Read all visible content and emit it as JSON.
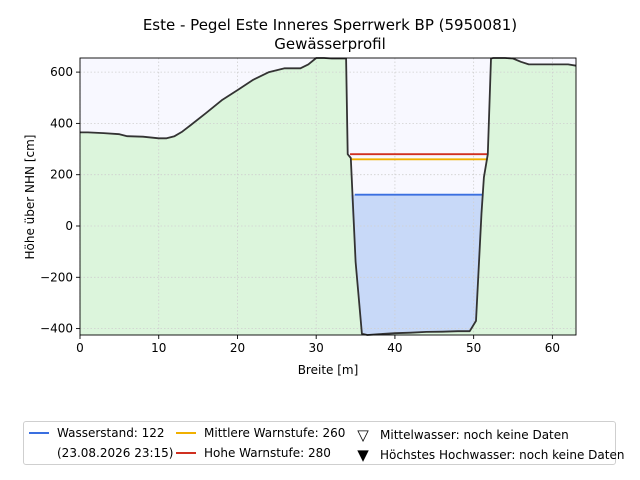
{
  "chart_data": {
    "type": "area",
    "title": "Este - Pegel Este Inneres Sperrwerk BP (5950081)",
    "subtitle": "Gewässerprofil",
    "xlabel": "Breite [m]",
    "ylabel": "Höhe über NHN [cm]",
    "xlim": [
      0,
      63
    ],
    "ylim": [
      -425,
      655
    ],
    "x_ticks": [
      0,
      10,
      20,
      30,
      40,
      50,
      60
    ],
    "y_ticks": [
      -400,
      -200,
      0,
      200,
      400,
      600
    ],
    "grid": true,
    "profile": {
      "x": [
        0,
        1,
        3,
        5,
        6,
        8,
        10,
        11,
        12,
        13,
        14,
        16,
        18,
        20,
        22,
        24,
        26,
        27,
        28,
        29,
        30,
        31,
        32,
        33,
        33.8,
        34.0,
        34.4,
        35.0,
        35.8,
        36.5,
        38,
        40,
        42,
        44,
        46,
        48,
        49.5,
        50.3,
        51.0,
        51.3,
        51.8,
        52.2,
        52.5,
        54,
        55,
        56,
        57,
        58,
        60,
        62,
        63
      ],
      "y": [
        365,
        365,
        362,
        358,
        350,
        348,
        342,
        342,
        350,
        368,
        392,
        440,
        490,
        530,
        570,
        600,
        615,
        615,
        615,
        630,
        655,
        655,
        653,
        653,
        653,
        280,
        265,
        -140,
        -420,
        -425,
        -422,
        -418,
        -416,
        -413,
        -412,
        -410,
        -410,
        -370,
        50,
        190,
        280,
        653,
        655,
        655,
        653,
        640,
        630,
        630,
        630,
        630,
        625
      ]
    },
    "water": {
      "x_range": [
        34.4,
        51.3
      ]
    },
    "levels": [
      {
        "name": "Wasserstand: 122",
        "note": "(23.08.2026 23:15)",
        "value": 122,
        "color": "#3a6fe0"
      },
      {
        "name": "Mittlere Warnstufe: 260",
        "value": 260,
        "color": "#f0b000"
      },
      {
        "name": "Hohe Warnstufe: 280",
        "value": 280,
        "color": "#d03020"
      }
    ],
    "markers": [
      {
        "name": "Mittelwasser: noch keine Daten",
        "symbol": "▽"
      },
      {
        "name": "Höchstes Hochwasser: noch keine Daten",
        "symbol": "▼"
      }
    ],
    "colors": {
      "ground": "#dcf5dc",
      "sky": "#f8f8ff",
      "water": "#c8d9f8",
      "profile_line": "#333333",
      "grid": "#cfcfcf"
    },
    "legend_position": "bottom"
  }
}
